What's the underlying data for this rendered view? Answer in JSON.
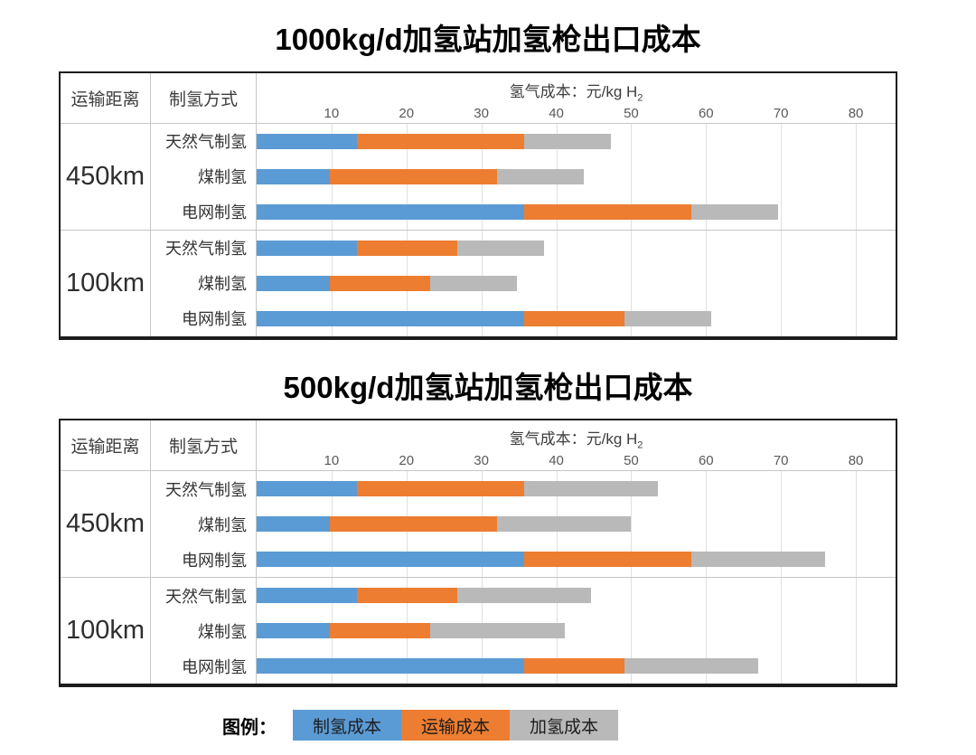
{
  "colors": {
    "production": "#5B9BD5",
    "transport": "#ED7D31",
    "refueling": "#B9B9B9"
  },
  "table_headers": {
    "distance": "运输距离",
    "method": "制氢方式"
  },
  "axis": {
    "title_prefix": "氢气成本：元/kg H",
    "title_sub": "2",
    "ticks": [
      10,
      20,
      30,
      40,
      50,
      60,
      70,
      80
    ],
    "max": 85.3
  },
  "legend": {
    "prefix": "图例：",
    "items": [
      {
        "label": "制氢成本",
        "color_key": "production"
      },
      {
        "label": "运输成本",
        "color_key": "transport"
      },
      {
        "label": "加氢成本",
        "color_key": "refueling"
      }
    ]
  },
  "chart_data": [
    {
      "type": "bar",
      "orientation": "horizontal",
      "stacked": true,
      "title": "1000kg/d加氢站加氢枪出口成本",
      "xlabel": "氢气成本：元/kg H2",
      "x_ticks": [
        10,
        20,
        30,
        40,
        50,
        60,
        70,
        80
      ],
      "xlim": [
        0,
        85.3
      ],
      "grid": true,
      "series_names": [
        "制氢成本",
        "运输成本",
        "加氢成本"
      ],
      "groups": [
        {
          "distance": "450km",
          "rows": [
            {
              "method": "天然气制氢",
              "values": [
                13.4,
                22.3,
                11.6
              ]
            },
            {
              "method": "煤制氢",
              "values": [
                9.8,
                22.3,
                11.6
              ]
            },
            {
              "method": "电网制氢",
              "values": [
                35.7,
                22.3,
                11.6
              ]
            }
          ]
        },
        {
          "distance": "100km",
          "rows": [
            {
              "method": "天然气制氢",
              "values": [
                13.4,
                13.4,
                11.6
              ]
            },
            {
              "method": "煤制氢",
              "values": [
                9.8,
                13.4,
                11.6
              ]
            },
            {
              "method": "电网制氢",
              "values": [
                35.7,
                13.4,
                11.6
              ]
            }
          ]
        }
      ]
    },
    {
      "type": "bar",
      "orientation": "horizontal",
      "stacked": true,
      "title": "500kg/d加氢站加氢枪出口成本",
      "xlabel": "氢气成本：元/kg H2",
      "x_ticks": [
        10,
        20,
        30,
        40,
        50,
        60,
        70,
        80
      ],
      "xlim": [
        0,
        85.3
      ],
      "grid": true,
      "series_names": [
        "制氢成本",
        "运输成本",
        "加氢成本"
      ],
      "groups": [
        {
          "distance": "450km",
          "rows": [
            {
              "method": "天然气制氢",
              "values": [
                13.4,
                22.3,
                17.9
              ]
            },
            {
              "method": "煤制氢",
              "values": [
                9.8,
                22.3,
                17.9
              ]
            },
            {
              "method": "电网制氢",
              "values": [
                35.7,
                22.3,
                17.9
              ]
            }
          ]
        },
        {
          "distance": "100km",
          "rows": [
            {
              "method": "天然气制氢",
              "values": [
                13.4,
                13.4,
                17.9
              ]
            },
            {
              "method": "煤制氢",
              "values": [
                9.8,
                13.4,
                17.9
              ]
            },
            {
              "method": "电网制氢",
              "values": [
                35.7,
                13.4,
                17.9
              ]
            }
          ]
        }
      ]
    }
  ]
}
